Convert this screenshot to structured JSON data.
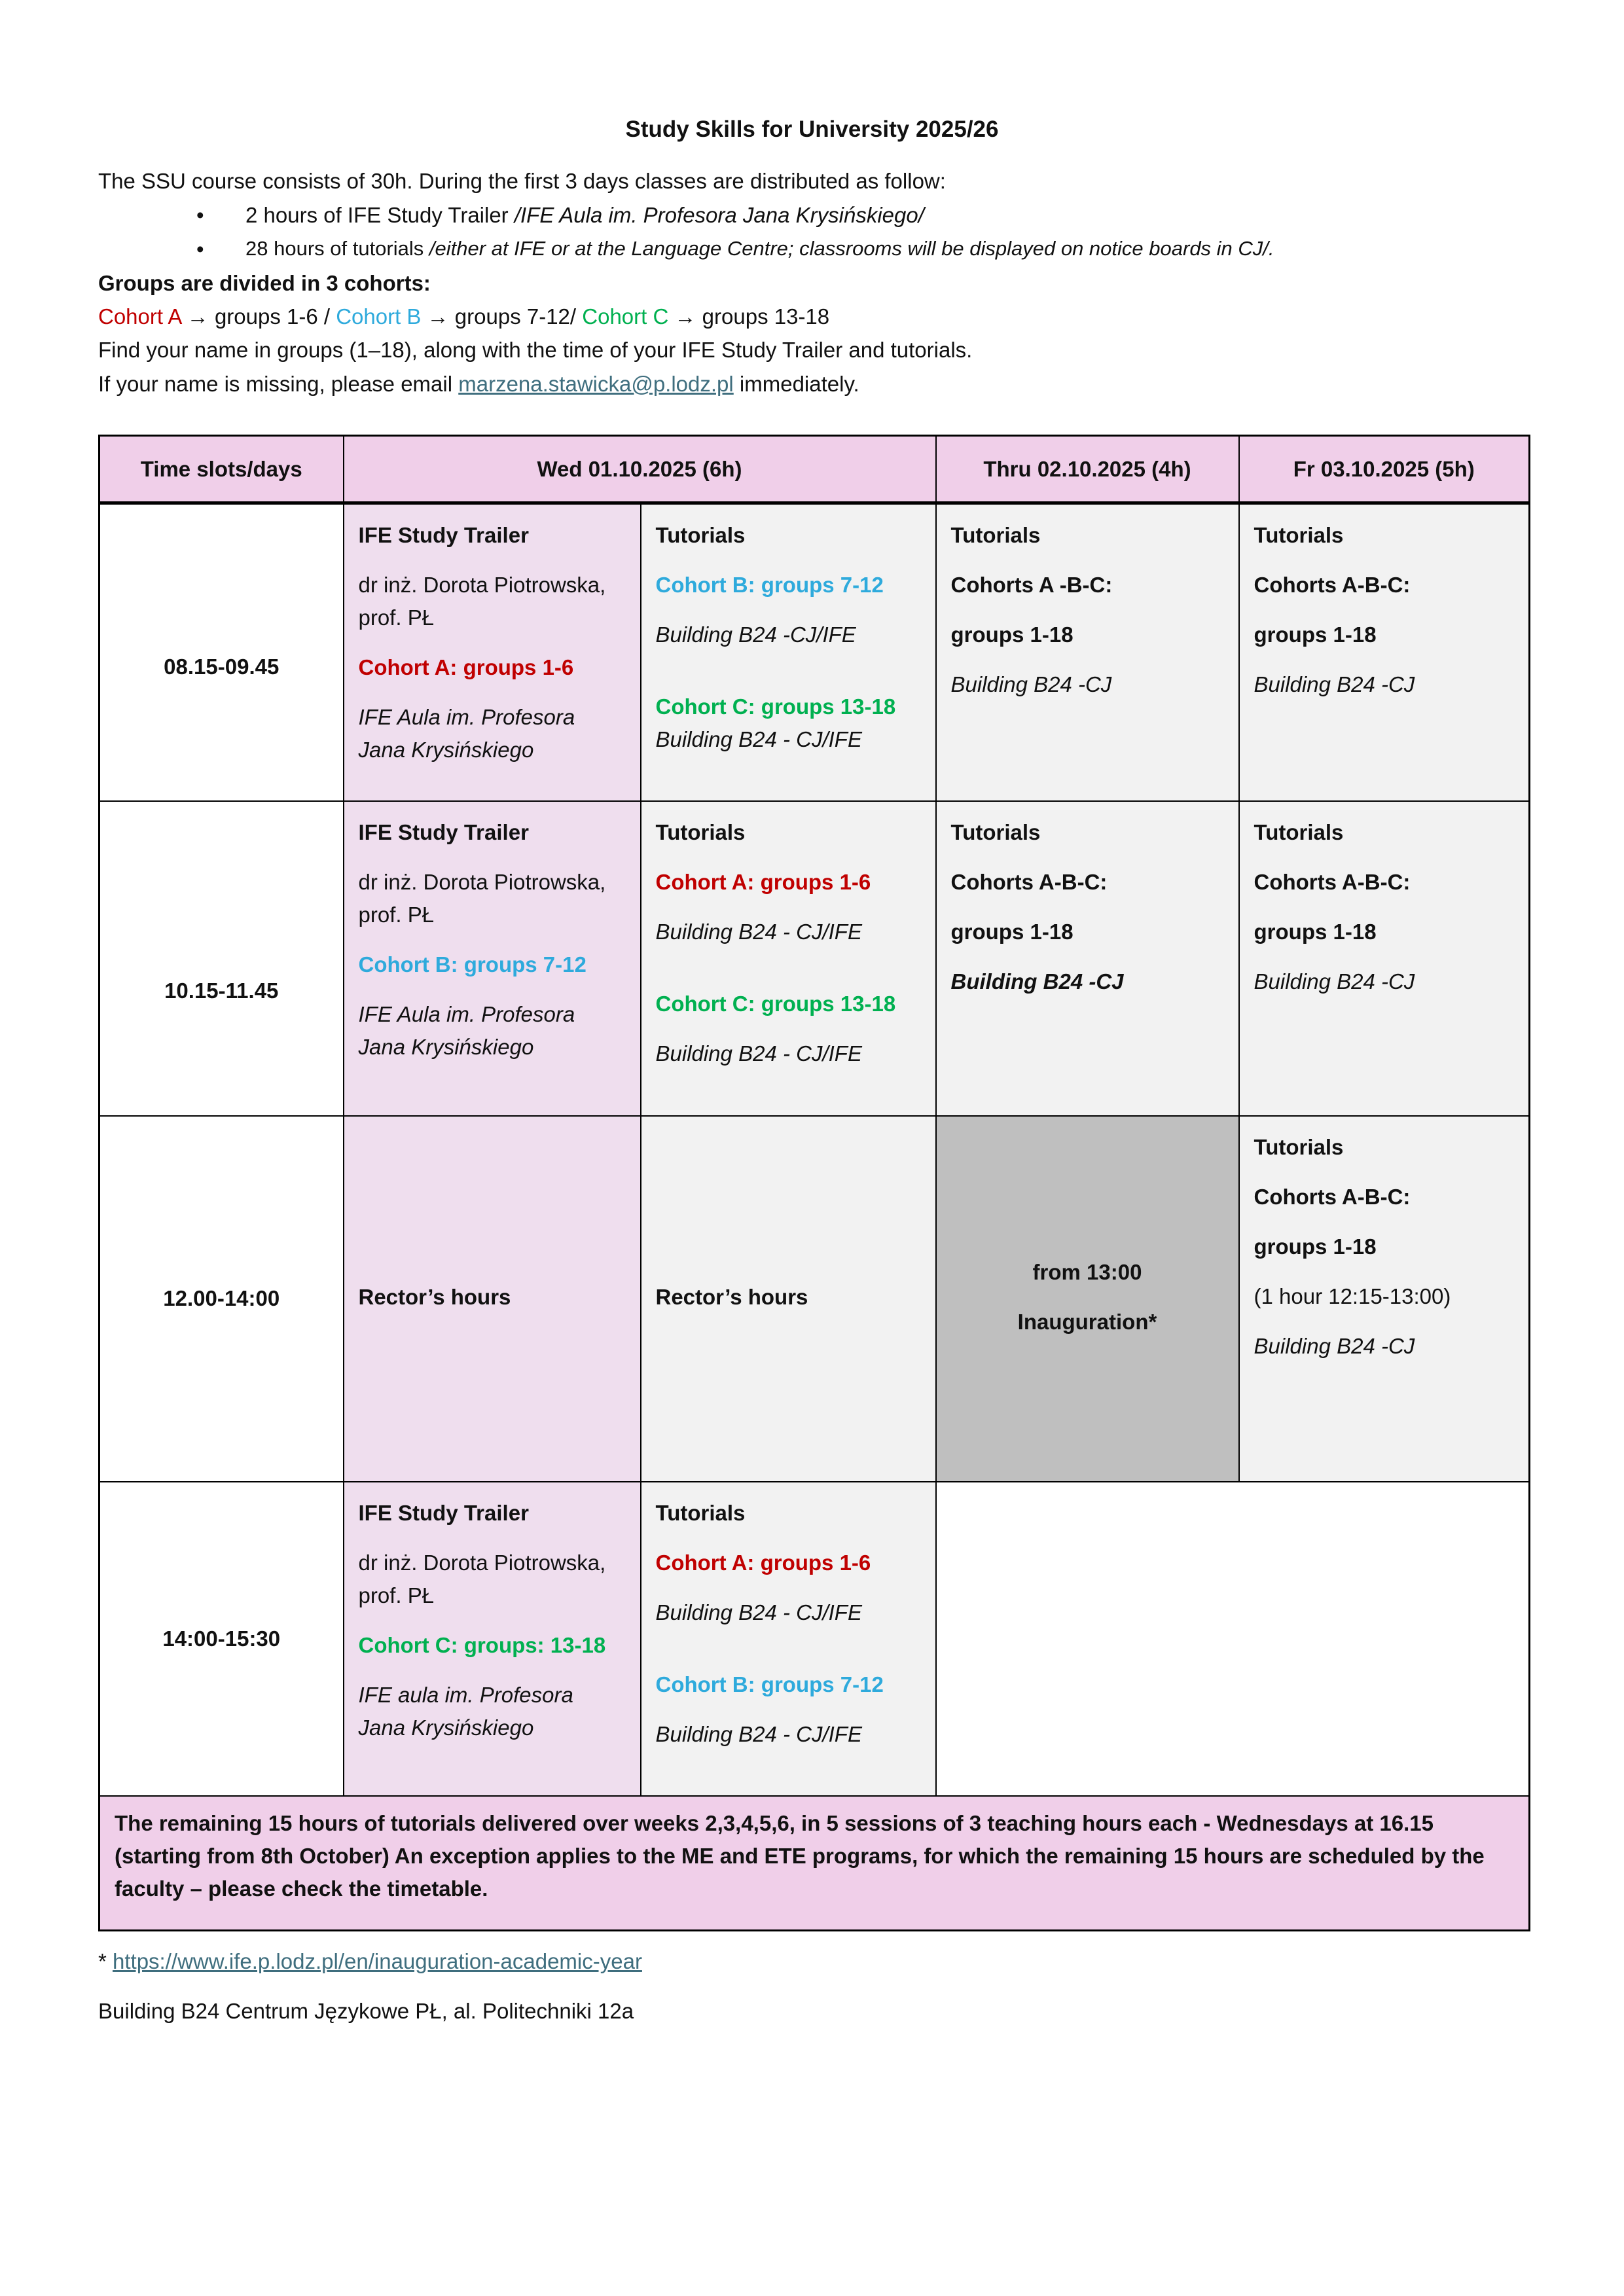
{
  "title": "Study Skills for University 2025/26",
  "intro": {
    "line1": "The SSU course consists of 30h. During the first 3 days classes are distributed as follow:",
    "bullets": [
      {
        "text": "2 hours of IFE Study Trailer ",
        "italic": "/IFE Aula im. Profesora Jana Krysińskiego/"
      },
      {
        "text": "28 hours of tutorials ",
        "italic": "/either at IFE or at the Language Centre; classrooms will be displayed on notice boards in CJ/."
      }
    ],
    "groups_heading": "Groups are divided in 3 cohorts:",
    "cohorts": [
      {
        "label": "Cohort A",
        "arrow": "→",
        "groups": "groups 1-6 /",
        "color": "#c00000"
      },
      {
        "label": "Cohort B",
        "arrow": "→",
        "groups": "groups 7-12/",
        "color": "#2eaadc"
      },
      {
        "label": "Cohort C",
        "arrow": "→",
        "groups": "groups 13-18",
        "color": "#00b050"
      }
    ],
    "find_line": "Find your name in groups (1–18), along with the time of your IFE Study Trailer and tutorials.",
    "missing_pre": "If your name is missing, please email ",
    "missing_email": "marzena.stawicka@p.lodz.pl",
    "missing_post": " immediately."
  },
  "table": {
    "headers": [
      "Time slots/days",
      "Wed 01.10.2025 (6h)",
      "Thru 02.10.2025 (4h)",
      "Fr 03.10.2025 (5h)"
    ],
    "rows": [
      {
        "time": "08.15-09.45",
        "cells": [
          [
            {
              "t": "IFE Study Trailer",
              "s": "b"
            },
            {
              "t": "dr inż. Dorota Piotrowska, prof. PŁ",
              "s": ""
            },
            {
              "t": "Cohort A: groups 1-6",
              "s": "red"
            },
            {
              "t": "IFE Aula im. Profesora Jana Krysińskiego",
              "s": "i"
            }
          ],
          [
            {
              "t": "Tutorials",
              "s": "b"
            },
            {
              "t": "Cohort B: groups 7-12",
              "s": "blue"
            },
            {
              "t": "Building B24 -CJ/IFE",
              "s": "i"
            },
            {
              "t": "Cohort C: groups 13-18",
              "s": "green"
            },
            {
              "t": "Building B24 - CJ/IFE",
              "s": "i"
            }
          ],
          [
            {
              "t": "Tutorials",
              "s": "b"
            },
            {
              "t": "Cohorts A -B-C:",
              "s": "b"
            },
            {
              "t": "groups 1-18",
              "s": "b"
            },
            {
              "t": "Building B24 -CJ",
              "s": "i"
            }
          ],
          [
            {
              "t": "Tutorials",
              "s": "b"
            },
            {
              "t": "Cohorts A-B-C:",
              "s": "b"
            },
            {
              "t": "groups 1-18",
              "s": "b"
            },
            {
              "t": "Building B24 -CJ",
              "s": "i"
            }
          ]
        ]
      },
      {
        "time": "10.15-11.45",
        "cells": [
          [
            {
              "t": "IFE Study Trailer",
              "s": "b"
            },
            {
              "t": "dr inż. Dorota Piotrowska, prof. PŁ",
              "s": ""
            },
            {
              "t": "Cohort B: groups 7-12",
              "s": "blue"
            },
            {
              "t": "IFE Aula im. Profesora Jana Krysińskiego",
              "s": "i"
            }
          ],
          [
            {
              "t": "Tutorials",
              "s": "b"
            },
            {
              "t": "Cohort A: groups 1-6",
              "s": "red"
            },
            {
              "t": "Building B24 - CJ/IFE",
              "s": "i"
            },
            {
              "t": "Cohort C: groups 13-18",
              "s": "green"
            },
            {
              "t": "Building B24 - CJ/IFE",
              "s": "i"
            }
          ],
          [
            {
              "t": "Tutorials",
              "s": "b"
            },
            {
              "t": "Cohorts A-B-C:",
              "s": "b"
            },
            {
              "t": "groups 1-18",
              "s": "b"
            },
            {
              "t": "Building B24 -CJ",
              "s": "b i"
            }
          ],
          [
            {
              "t": "Tutorials",
              "s": "b"
            },
            {
              "t": "Cohorts A-B-C:",
              "s": "b"
            },
            {
              "t": "groups 1-18",
              "s": "b"
            },
            {
              "t": "Building B24 -CJ",
              "s": "i"
            }
          ]
        ]
      },
      {
        "time": "12.00-14:00",
        "cells": [
          [
            {
              "t": "Rector’s hours",
              "s": "b"
            }
          ],
          [
            {
              "t": "Rector’s hours",
              "s": "b"
            }
          ],
          [
            {
              "t": "from 13:00",
              "s": "b"
            },
            {
              "t": "Inauguration*",
              "s": "b"
            }
          ],
          [
            {
              "t": "Tutorials",
              "s": "b"
            },
            {
              "t": "Cohorts A-B-C:",
              "s": "b"
            },
            {
              "t": "groups 1-18",
              "s": "b"
            },
            {
              "t": "(1 hour 12:15-13:00)",
              "s": ""
            },
            {
              "t": "Building B24 -CJ",
              "s": "i"
            }
          ]
        ]
      },
      {
        "time": "14:00-15:30",
        "cells": [
          [
            {
              "t": "IFE Study Trailer",
              "s": "b"
            },
            {
              "t": "dr inż. Dorota Piotrowska, prof. PŁ",
              "s": ""
            },
            {
              "t": "Cohort C: groups: 13-18",
              "s": "green"
            },
            {
              "t": "IFE aula im. Profesora Jana Krysińskiego",
              "s": "i"
            }
          ],
          [
            {
              "t": "Tutorials",
              "s": "b"
            },
            {
              "t": "Cohort A: groups 1-6",
              "s": "red"
            },
            {
              "t": "Building B24 - CJ/IFE",
              "s": "i"
            },
            {
              "t": "Cohort B: groups 7-12",
              "s": "blue"
            },
            {
              "t": "Building B24 - CJ/IFE",
              "s": "i"
            }
          ]
        ]
      }
    ],
    "footer": "The remaining 15 hours of tutorials delivered over weeks 2,3,4,5,6, in 5 sessions of 3 teaching hours each - Wednesdays at 16.15 (starting from 8th October) An exception applies to the ME and ETE programs, for which the remaining 15 hours are scheduled by the faculty – please check the timetable."
  },
  "footnote": {
    "marker": "* ",
    "url": "https://www.ife.p.lodz.pl/en/inauguration-academic-year"
  },
  "address": "Building B24 Centrum Językowe PŁ, al. Politechniki 12a",
  "colors": {
    "header_bg": "#f0cfe9",
    "wed_bg": "#efdeee",
    "cell_bg": "#f2f2f2",
    "inauguration_bg": "#bfbfbf",
    "cohort_a": "#c00000",
    "cohort_b": "#2eaadc",
    "cohort_c": "#00b050"
  }
}
